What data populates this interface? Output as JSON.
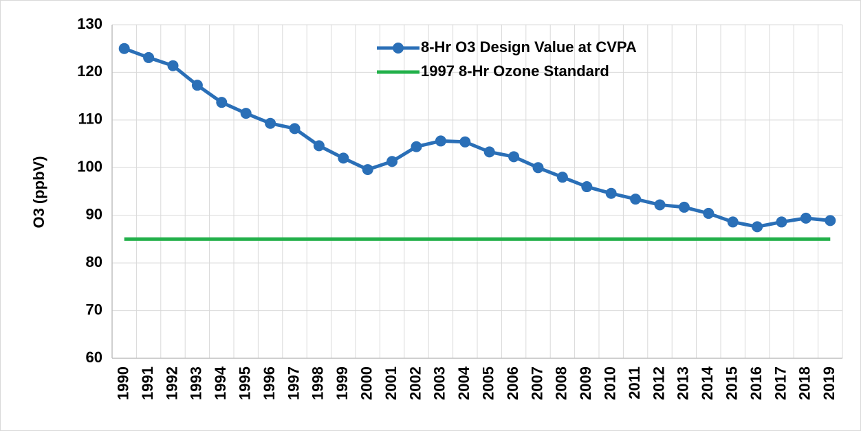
{
  "chart_data": {
    "type": "line",
    "y_label": "O3 (ppbV)",
    "categories": [
      "1990",
      "1991",
      "1992",
      "1993",
      "1994",
      "1995",
      "1996",
      "1997",
      "1998",
      "1999",
      "2000",
      "2001",
      "2002",
      "2003",
      "2004",
      "2005",
      "2006",
      "2007",
      "2008",
      "2009",
      "2010",
      "2011",
      "2012",
      "2013",
      "2014",
      "2015",
      "2016",
      "2017",
      "2018",
      "2019"
    ],
    "series": [
      {
        "name": "8-Hr O3 Design Value at CVPA",
        "color": "#2a6fb7",
        "marker": true,
        "values": [
          125.0,
          123.1,
          121.4,
          117.3,
          113.7,
          111.4,
          109.3,
          108.2,
          104.6,
          102.0,
          99.6,
          101.3,
          104.4,
          105.6,
          105.4,
          103.3,
          102.3,
          100.0,
          98.0,
          96.0,
          94.6,
          93.4,
          92.2,
          91.7,
          90.4,
          88.6,
          87.6,
          88.6,
          89.4,
          88.9
        ]
      },
      {
        "name": "1997 8-Hr Ozone Standard",
        "color": "#22b04a",
        "marker": false,
        "values": [
          85,
          85,
          85,
          85,
          85,
          85,
          85,
          85,
          85,
          85,
          85,
          85,
          85,
          85,
          85,
          85,
          85,
          85,
          85,
          85,
          85,
          85,
          85,
          85,
          85,
          85,
          85,
          85,
          85,
          85
        ]
      }
    ],
    "ylim": [
      60,
      130
    ],
    "yticks": [
      60,
      70,
      80,
      90,
      100,
      110,
      120,
      130
    ],
    "grid": true,
    "legend": "top"
  }
}
